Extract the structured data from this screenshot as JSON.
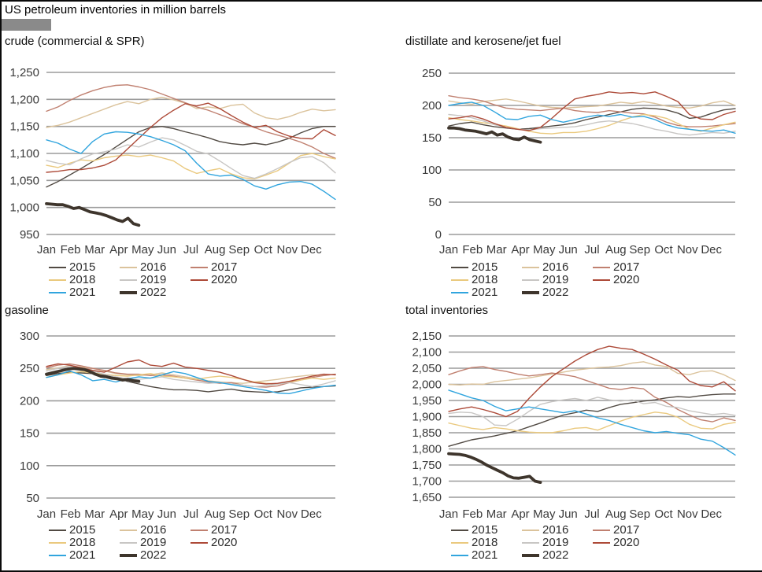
{
  "page": {
    "title": "US petroleum inventories in million barrels"
  },
  "colors": {
    "grid": "#9b9b9b",
    "border": "#0a0a0a",
    "logo_block": "#8a8a8a",
    "tick_text": "#3a3a3a"
  },
  "months": [
    "Jan",
    "Feb",
    "Mar",
    "Apr",
    "May",
    "Jun",
    "Jul",
    "Aug",
    "Sep",
    "Oct",
    "Nov",
    "Dec"
  ],
  "chart_data": [
    {
      "type": "line",
      "title": "crude (commercial & SPR)",
      "ylim": [
        950,
        1250
      ],
      "ystep": 50,
      "grid": true,
      "legend_position": "bottom",
      "x_note": "weekly data, Jan through Dec",
      "series": [
        {
          "name": "2015",
          "color": "#514a43",
          "values": [
            1038,
            1048,
            1060,
            1072,
            1085,
            1098,
            1112,
            1126,
            1140,
            1148,
            1150,
            1146,
            1140,
            1135,
            1129,
            1122,
            1118,
            1116,
            1119,
            1116,
            1121,
            1128,
            1138,
            1146,
            1150,
            1150
          ]
        },
        {
          "name": "2016",
          "color": "#dbc39c",
          "values": [
            1148,
            1152,
            1158,
            1166,
            1174,
            1182,
            1190,
            1196,
            1192,
            1200,
            1204,
            1199,
            1193,
            1183,
            1186,
            1183,
            1189,
            1191,
            1175,
            1166,
            1163,
            1168,
            1176,
            1182,
            1179,
            1181
          ]
        },
        {
          "name": "2017",
          "color": "#c08070",
          "values": [
            1178,
            1186,
            1198,
            1208,
            1216,
            1222,
            1226,
            1227,
            1223,
            1218,
            1210,
            1202,
            1194,
            1186,
            1180,
            1172,
            1164,
            1155,
            1148,
            1140,
            1134,
            1128,
            1121,
            1112,
            1100,
            1091
          ]
        },
        {
          "name": "2018",
          "color": "#eac97e",
          "values": [
            1078,
            1074,
            1082,
            1088,
            1086,
            1092,
            1095,
            1097,
            1094,
            1097,
            1092,
            1086,
            1072,
            1063,
            1068,
            1072,
            1062,
            1055,
            1053,
            1060,
            1068,
            1082,
            1096,
            1100,
            1094,
            1090
          ]
        },
        {
          "name": "2019",
          "color": "#c8c6c4",
          "values": [
            1087,
            1082,
            1079,
            1090,
            1099,
            1103,
            1108,
            1116,
            1112,
            1121,
            1129,
            1125,
            1115,
            1104,
            1099,
            1086,
            1072,
            1059,
            1054,
            1062,
            1072,
            1083,
            1092,
            1094,
            1083,
            1064
          ]
        },
        {
          "name": "2020",
          "color": "#ad4a38",
          "values": [
            1065,
            1067,
            1070,
            1070,
            1073,
            1078,
            1088,
            1108,
            1128,
            1148,
            1166,
            1180,
            1192,
            1188,
            1193,
            1183,
            1170,
            1158,
            1148,
            1152,
            1140,
            1132,
            1128,
            1127,
            1144,
            1133
          ]
        },
        {
          "name": "2021",
          "color": "#31a5de",
          "values": [
            1125,
            1119,
            1108,
            1100,
            1122,
            1136,
            1140,
            1139,
            1136,
            1131,
            1124,
            1116,
            1105,
            1082,
            1062,
            1058,
            1060,
            1052,
            1040,
            1034,
            1042,
            1047,
            1048,
            1043,
            1030,
            1015
          ]
        },
        {
          "name": "2022",
          "color": "#3e352c",
          "emphasis": true,
          "end_frac": 0.32,
          "values": [
            1007,
            1006,
            1005,
            1005,
            1002,
            998,
            1000,
            996,
            992,
            990,
            988,
            985,
            981,
            977,
            974,
            980,
            970,
            967
          ]
        }
      ]
    },
    {
      "type": "line",
      "title": "distillate and kerosene/jet fuel",
      "ylim": [
        0,
        250
      ],
      "ystep": 50,
      "grid": true,
      "legend_position": "bottom",
      "x_note": "weekly data, Jan through Dec",
      "series": [
        {
          "name": "2015",
          "color": "#514a43",
          "values": [
            168,
            172,
            174,
            170,
            167,
            165,
            163,
            164,
            166,
            168,
            170,
            173,
            178,
            182,
            186,
            190,
            194,
            196,
            195,
            193,
            188,
            180,
            182,
            188,
            193,
            195
          ]
        },
        {
          "name": "2016",
          "color": "#dbc39c",
          "values": [
            207,
            204,
            202,
            206,
            208,
            210,
            207,
            203,
            199,
            197,
            196,
            197,
            198,
            199,
            202,
            205,
            203,
            206,
            203,
            199,
            197,
            196,
            199,
            204,
            207,
            200
          ]
        },
        {
          "name": "2017",
          "color": "#c08070",
          "values": [
            215,
            212,
            210,
            207,
            201,
            196,
            194,
            193,
            192,
            194,
            196,
            192,
            190,
            189,
            192,
            190,
            188,
            187,
            182,
            174,
            169,
            167,
            167,
            168,
            170,
            172
          ]
        },
        {
          "name": "2018",
          "color": "#eac97e",
          "values": [
            181,
            178,
            176,
            173,
            171,
            168,
            164,
            160,
            157,
            156,
            158,
            158,
            160,
            164,
            169,
            176,
            182,
            186,
            184,
            180,
            172,
            163,
            160,
            165,
            170,
            174
          ]
        },
        {
          "name": "2019",
          "color": "#c8c6c4",
          "values": [
            186,
            184,
            181,
            176,
            170,
            166,
            163,
            162,
            164,
            165,
            166,
            167,
            170,
            174,
            176,
            174,
            172,
            168,
            163,
            160,
            156,
            154,
            156,
            158,
            157,
            160
          ]
        },
        {
          "name": "2020",
          "color": "#ad4a38",
          "values": [
            179,
            181,
            184,
            179,
            172,
            166,
            163,
            161,
            166,
            180,
            196,
            210,
            214,
            217,
            221,
            219,
            220,
            218,
            221,
            214,
            206,
            186,
            179,
            178,
            186,
            191
          ]
        },
        {
          "name": "2021",
          "color": "#31a5de",
          "values": [
            200,
            203,
            205,
            200,
            190,
            179,
            178,
            183,
            185,
            178,
            174,
            178,
            182,
            185,
            183,
            186,
            182,
            183,
            178,
            170,
            165,
            163,
            161,
            160,
            162,
            157
          ]
        },
        {
          "name": "2022",
          "color": "#3e352c",
          "emphasis": true,
          "end_frac": 0.32,
          "values": [
            165,
            165,
            164,
            162,
            161,
            160,
            158,
            156,
            159,
            154,
            156,
            151,
            148,
            147,
            151,
            147,
            145,
            143
          ]
        }
      ]
    },
    {
      "type": "line",
      "title": "gasoline",
      "ylim": [
        50,
        300
      ],
      "ystep": 50,
      "grid": true,
      "legend_position": "bottom",
      "x_note": "weekly data, Jan through Dec",
      "series": [
        {
          "name": "2015",
          "color": "#514a43",
          "values": [
            239,
            242,
            244,
            243,
            242,
            240,
            236,
            230,
            226,
            222,
            219,
            217,
            217,
            216,
            214,
            216,
            218,
            215,
            214,
            213,
            214,
            217,
            220,
            221,
            222,
            223
          ]
        },
        {
          "name": "2016",
          "color": "#dbc39c",
          "values": [
            248,
            251,
            254,
            252,
            250,
            246,
            242,
            240,
            239,
            240,
            243,
            240,
            237,
            234,
            231,
            229,
            228,
            227,
            229,
            231,
            233,
            236,
            238,
            240,
            239,
            241
          ]
        },
        {
          "name": "2017",
          "color": "#c08070",
          "values": [
            251,
            255,
            257,
            254,
            250,
            247,
            243,
            241,
            241,
            239,
            240,
            238,
            235,
            232,
            229,
            227,
            228,
            224,
            222,
            221,
            223,
            228,
            232,
            236,
            239,
            241
          ]
        },
        {
          "name": "2018",
          "color": "#eac97e",
          "values": [
            236,
            240,
            243,
            245,
            243,
            241,
            239,
            238,
            240,
            242,
            238,
            237,
            235,
            233,
            236,
            238,
            236,
            233,
            229,
            227,
            226,
            229,
            232,
            235,
            233,
            235
          ]
        },
        {
          "name": "2019",
          "color": "#c8c6c4",
          "values": [
            246,
            250,
            253,
            249,
            246,
            241,
            237,
            234,
            233,
            235,
            237,
            233,
            231,
            229,
            227,
            228,
            226,
            224,
            222,
            223,
            226,
            228,
            225,
            222,
            226,
            231
          ]
        },
        {
          "name": "2020",
          "color": "#ad4a38",
          "values": [
            253,
            257,
            255,
            251,
            247,
            244,
            252,
            260,
            263,
            255,
            253,
            258,
            252,
            250,
            247,
            244,
            239,
            233,
            228,
            226,
            227,
            230,
            234,
            238,
            241,
            240
          ]
        },
        {
          "name": "2021",
          "color": "#31a5de",
          "values": [
            236,
            240,
            246,
            240,
            231,
            233,
            229,
            234,
            237,
            235,
            240,
            245,
            242,
            236,
            230,
            228,
            225,
            222,
            219,
            216,
            212,
            211,
            215,
            219,
            222,
            224
          ]
        },
        {
          "name": "2022",
          "color": "#3e352c",
          "emphasis": true,
          "end_frac": 0.32,
          "values": [
            241,
            243,
            245,
            247,
            249,
            250,
            249,
            248,
            245,
            241,
            238,
            237,
            235,
            234,
            232,
            233,
            231,
            230
          ]
        }
      ]
    },
    {
      "type": "line",
      "title": "total inventories",
      "ylim": [
        1650,
        2150
      ],
      "ystep": 50,
      "grid": true,
      "legend_position": "bottom",
      "x_note": "weekly data, Jan through Dec",
      "series": [
        {
          "name": "2015",
          "color": "#514a43",
          "values": [
            1808,
            1818,
            1828,
            1834,
            1840,
            1848,
            1856,
            1868,
            1880,
            1893,
            1905,
            1912,
            1920,
            1916,
            1928,
            1938,
            1943,
            1948,
            1952,
            1958,
            1962,
            1960,
            1965,
            1968,
            1970,
            1970
          ]
        },
        {
          "name": "2016",
          "color": "#dbc39c",
          "values": [
            2000,
            1998,
            2001,
            2000,
            2008,
            2012,
            2016,
            2020,
            2026,
            2032,
            2038,
            2044,
            2048,
            2052,
            2054,
            2058,
            2066,
            2070,
            2060,
            2055,
            2034,
            2030,
            2040,
            2042,
            2030,
            2012
          ]
        },
        {
          "name": "2017",
          "color": "#c08070",
          "values": [
            2030,
            2042,
            2052,
            2055,
            2046,
            2040,
            2032,
            2026,
            2030,
            2035,
            2030,
            2024,
            2012,
            2000,
            1988,
            1984,
            1990,
            1986,
            1960,
            1944,
            1922,
            1905,
            1890,
            1884,
            1896,
            1888
          ]
        },
        {
          "name": "2018",
          "color": "#eac97e",
          "values": [
            1880,
            1872,
            1864,
            1860,
            1866,
            1862,
            1856,
            1852,
            1850,
            1850,
            1856,
            1864,
            1866,
            1858,
            1872,
            1886,
            1898,
            1906,
            1914,
            1910,
            1898,
            1876,
            1864,
            1862,
            1876,
            1882
          ]
        },
        {
          "name": "2019",
          "color": "#c8c6c4",
          "values": [
            1910,
            1914,
            1912,
            1900,
            1874,
            1872,
            1892,
            1916,
            1938,
            1946,
            1952,
            1956,
            1950,
            1960,
            1952,
            1948,
            1952,
            1940,
            1944,
            1932,
            1928,
            1918,
            1912,
            1906,
            1910,
            1904
          ]
        },
        {
          "name": "2020",
          "color": "#ad4a38",
          "values": [
            1916,
            1924,
            1930,
            1922,
            1912,
            1900,
            1916,
            1956,
            1992,
            2024,
            2048,
            2072,
            2092,
            2108,
            2118,
            2112,
            2108,
            2094,
            2078,
            2060,
            2044,
            2010,
            1996,
            1992,
            2008,
            1980
          ]
        },
        {
          "name": "2021",
          "color": "#31a5de",
          "values": [
            1982,
            1970,
            1958,
            1950,
            1932,
            1918,
            1924,
            1930,
            1924,
            1918,
            1912,
            1918,
            1908,
            1896,
            1888,
            1876,
            1866,
            1856,
            1850,
            1854,
            1848,
            1844,
            1830,
            1824,
            1804,
            1781
          ]
        },
        {
          "name": "2022",
          "color": "#3e352c",
          "emphasis": true,
          "end_frac": 0.32,
          "values": [
            1785,
            1784,
            1783,
            1780,
            1775,
            1768,
            1760,
            1750,
            1742,
            1734,
            1726,
            1716,
            1710,
            1709,
            1712,
            1715,
            1700,
            1696
          ]
        }
      ]
    }
  ]
}
